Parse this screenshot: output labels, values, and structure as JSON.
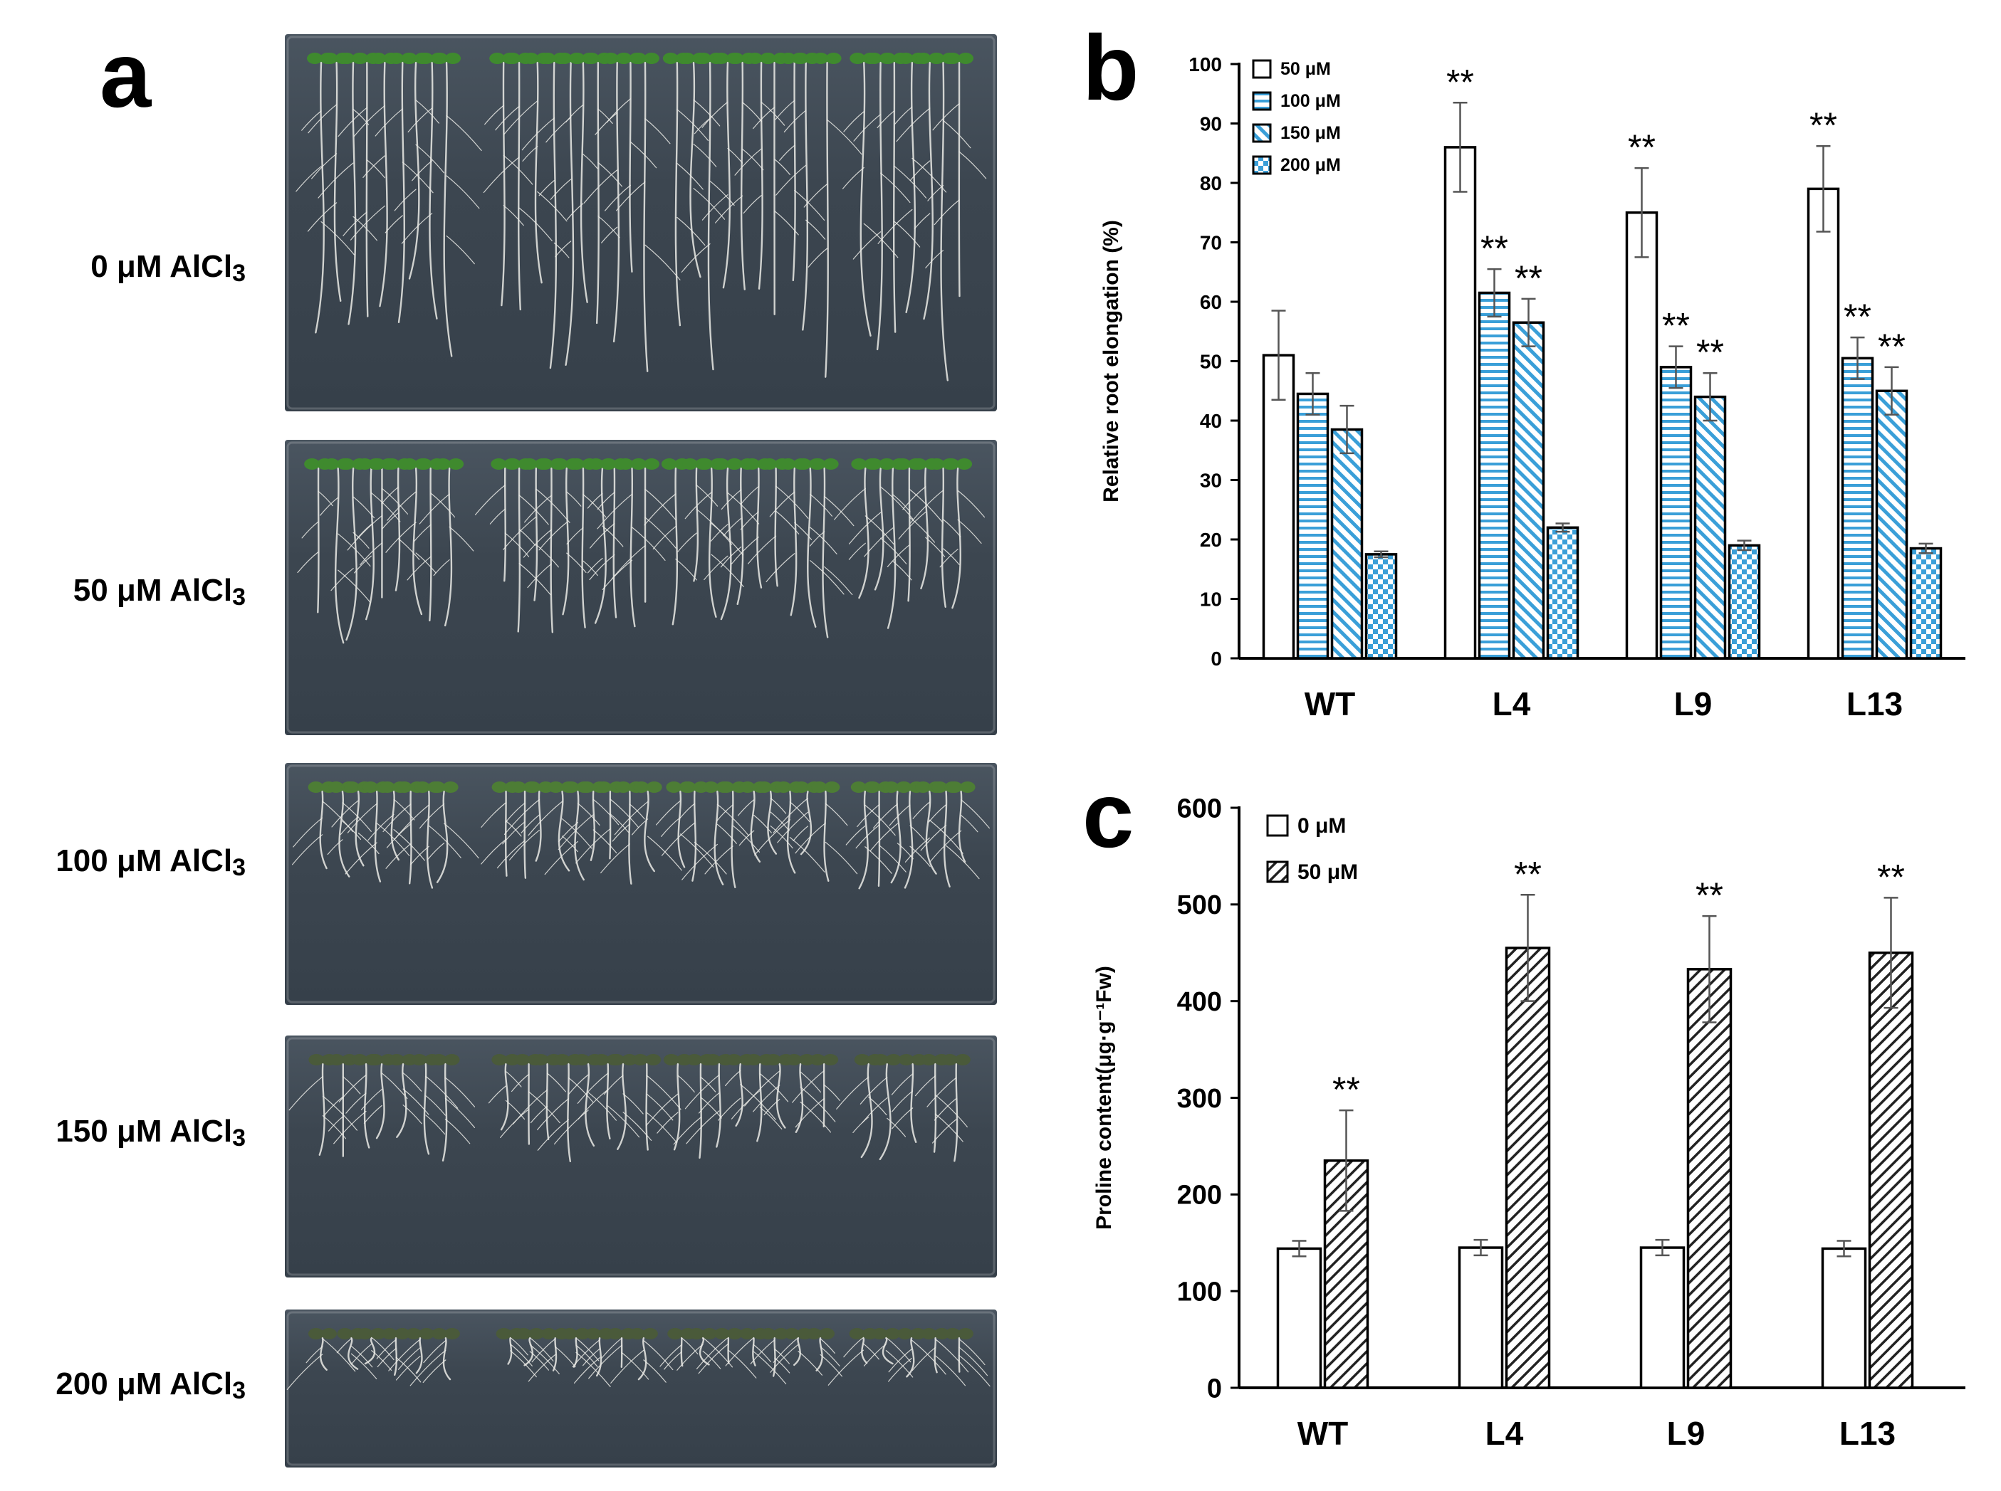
{
  "panel_a": {
    "letter": "a",
    "rows": [
      {
        "label_pre": "0 μM AlCl",
        "label_sub": "3",
        "density": 1.0,
        "root_len": 1.0
      },
      {
        "label_pre": "50 μM AlCl",
        "label_sub": "3",
        "density": 0.95,
        "root_len": 0.75
      },
      {
        "label_pre": "100 μM AlCl",
        "label_sub": "3",
        "density": 0.9,
        "root_len": 0.55
      },
      {
        "label_pre": "150 μM AlCl",
        "label_sub": "3",
        "density": 0.75,
        "root_len": 0.55
      },
      {
        "label_pre": "200 μM AlCl",
        "label_sub": "3",
        "density": 0.7,
        "root_len": 0.45
      }
    ]
  },
  "chart_data": [
    {
      "panel": "b",
      "type": "bar",
      "ylabel": "Relative root elongation (%)",
      "categories": [
        "WT",
        "L4",
        "L9",
        "L13"
      ],
      "ylim": [
        0,
        100
      ],
      "yticks": [
        "0",
        "10",
        "20",
        "30",
        "40",
        "50",
        "60",
        "70",
        "80",
        "90",
        "100"
      ],
      "legend_position": "top-left",
      "series": [
        {
          "name": "50 μM",
          "values": [
            51,
            86,
            75,
            79
          ],
          "errors": [
            7.5,
            7.5,
            7.5,
            7.2
          ],
          "sig": [
            "",
            "**",
            "**",
            "**"
          ],
          "pattern": "open"
        },
        {
          "name": "100 μM",
          "values": [
            44.5,
            61.5,
            49,
            50.5
          ],
          "errors": [
            3.5,
            4,
            3.5,
            3.5
          ],
          "sig": [
            "",
            "**",
            "**",
            "**"
          ],
          "pattern": "hlines"
        },
        {
          "name": "150 μM",
          "values": [
            38.5,
            56.5,
            44,
            45
          ],
          "errors": [
            4,
            4,
            4,
            4
          ],
          "sig": [
            "",
            "**",
            "**",
            "**"
          ],
          "pattern": "diag"
        },
        {
          "name": "200 μM",
          "values": [
            17.5,
            22,
            19,
            18.5
          ],
          "errors": [
            0.5,
            0.7,
            0.8,
            0.8
          ],
          "sig": [
            "",
            "",
            "",
            ""
          ],
          "pattern": "checker"
        }
      ],
      "colors": {
        "accent": "#3a9fd8",
        "edge": "#000000"
      }
    },
    {
      "panel": "c",
      "type": "bar",
      "ylabel": "Proline content(μg·g⁻¹Fw)",
      "categories": [
        "WT",
        "L4",
        "L9",
        "L13"
      ],
      "ylim": [
        0,
        600
      ],
      "yticks": [
        "0",
        "100",
        "200",
        "300",
        "400",
        "500",
        "600"
      ],
      "legend_position": "top-left",
      "series": [
        {
          "name": "0 μM",
          "values": [
            144,
            145,
            145,
            144
          ],
          "errors": [
            8,
            8,
            8,
            8
          ],
          "sig": [
            "",
            "",
            "",
            ""
          ],
          "pattern": "open"
        },
        {
          "name": "50 μM",
          "values": [
            235,
            455,
            433,
            450
          ],
          "errors": [
            52,
            55,
            55,
            57
          ],
          "sig": [
            "**",
            "**",
            "**",
            "**"
          ],
          "pattern": "hatch"
        }
      ],
      "colors": {
        "edge": "#000000"
      }
    }
  ]
}
